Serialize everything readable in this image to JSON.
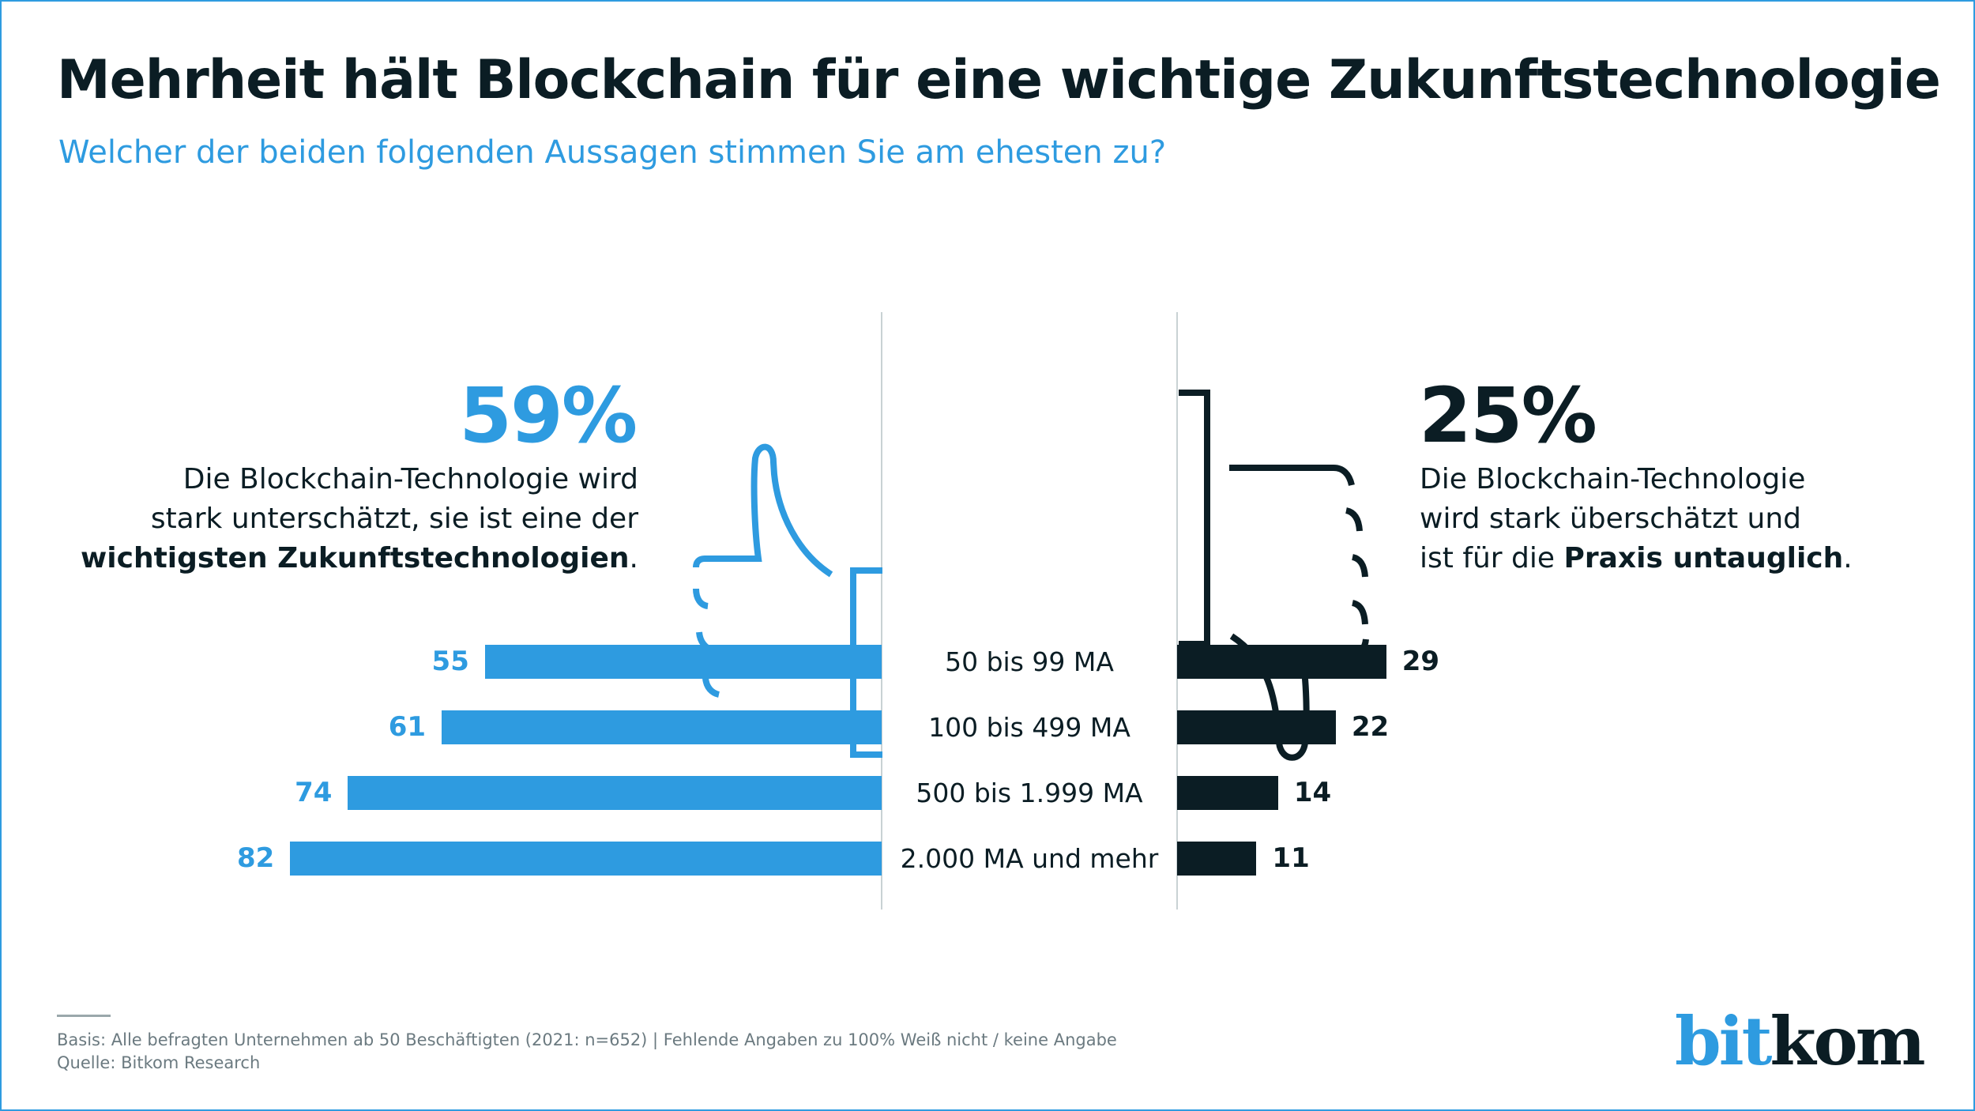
{
  "title": "Mehrheit hält Blockchain für eine wichtige Zukunftstechnologie",
  "subtitle": "Welcher der beiden folgenden Aussagen stimmen Sie am ehesten zu?",
  "colors": {
    "positive": "#2e9be0",
    "negative": "#0b1d24"
  },
  "left_panel": {
    "percent": "59%",
    "icon": "thumbs-up-icon",
    "line1": "Die Blockchain-Technologie wird",
    "line2": "stark unterschätzt, sie ist eine der",
    "line3_bold": "wichtigsten Zukunftstechnologien",
    "line3_end": "."
  },
  "right_panel": {
    "percent": "25%",
    "icon": "thumbs-down-icon",
    "line1": "Die Blockchain-Technologie",
    "line2": "wird stark überschätzt und",
    "line3_start": "ist für die ",
    "line3_bold": "Praxis untauglich",
    "line3_end": "."
  },
  "chart_data": {
    "type": "bar",
    "orientation": "diverging-horizontal",
    "categories": [
      "50 bis 99 MA",
      "100 bis 499 MA",
      "500 bis 1.999 MA",
      "2.000 MA und mehr"
    ],
    "series": [
      {
        "values": [
          55,
          61,
          74,
          82
        ],
        "color": "#2e9be0",
        "side": "left"
      },
      {
        "values": [
          29,
          22,
          14,
          11
        ],
        "color": "#0b1d24",
        "side": "right"
      }
    ],
    "unit": "%"
  },
  "footer": {
    "basis": "Basis: Alle befragten Unternehmen ab 50 Beschäftigten (2021: n=652) | Fehlende Angaben zu 100% Weiß nicht / keine Angabe",
    "source": "Quelle: Bitkom Research",
    "logo_part1": "bit",
    "logo_part2": "kom"
  }
}
